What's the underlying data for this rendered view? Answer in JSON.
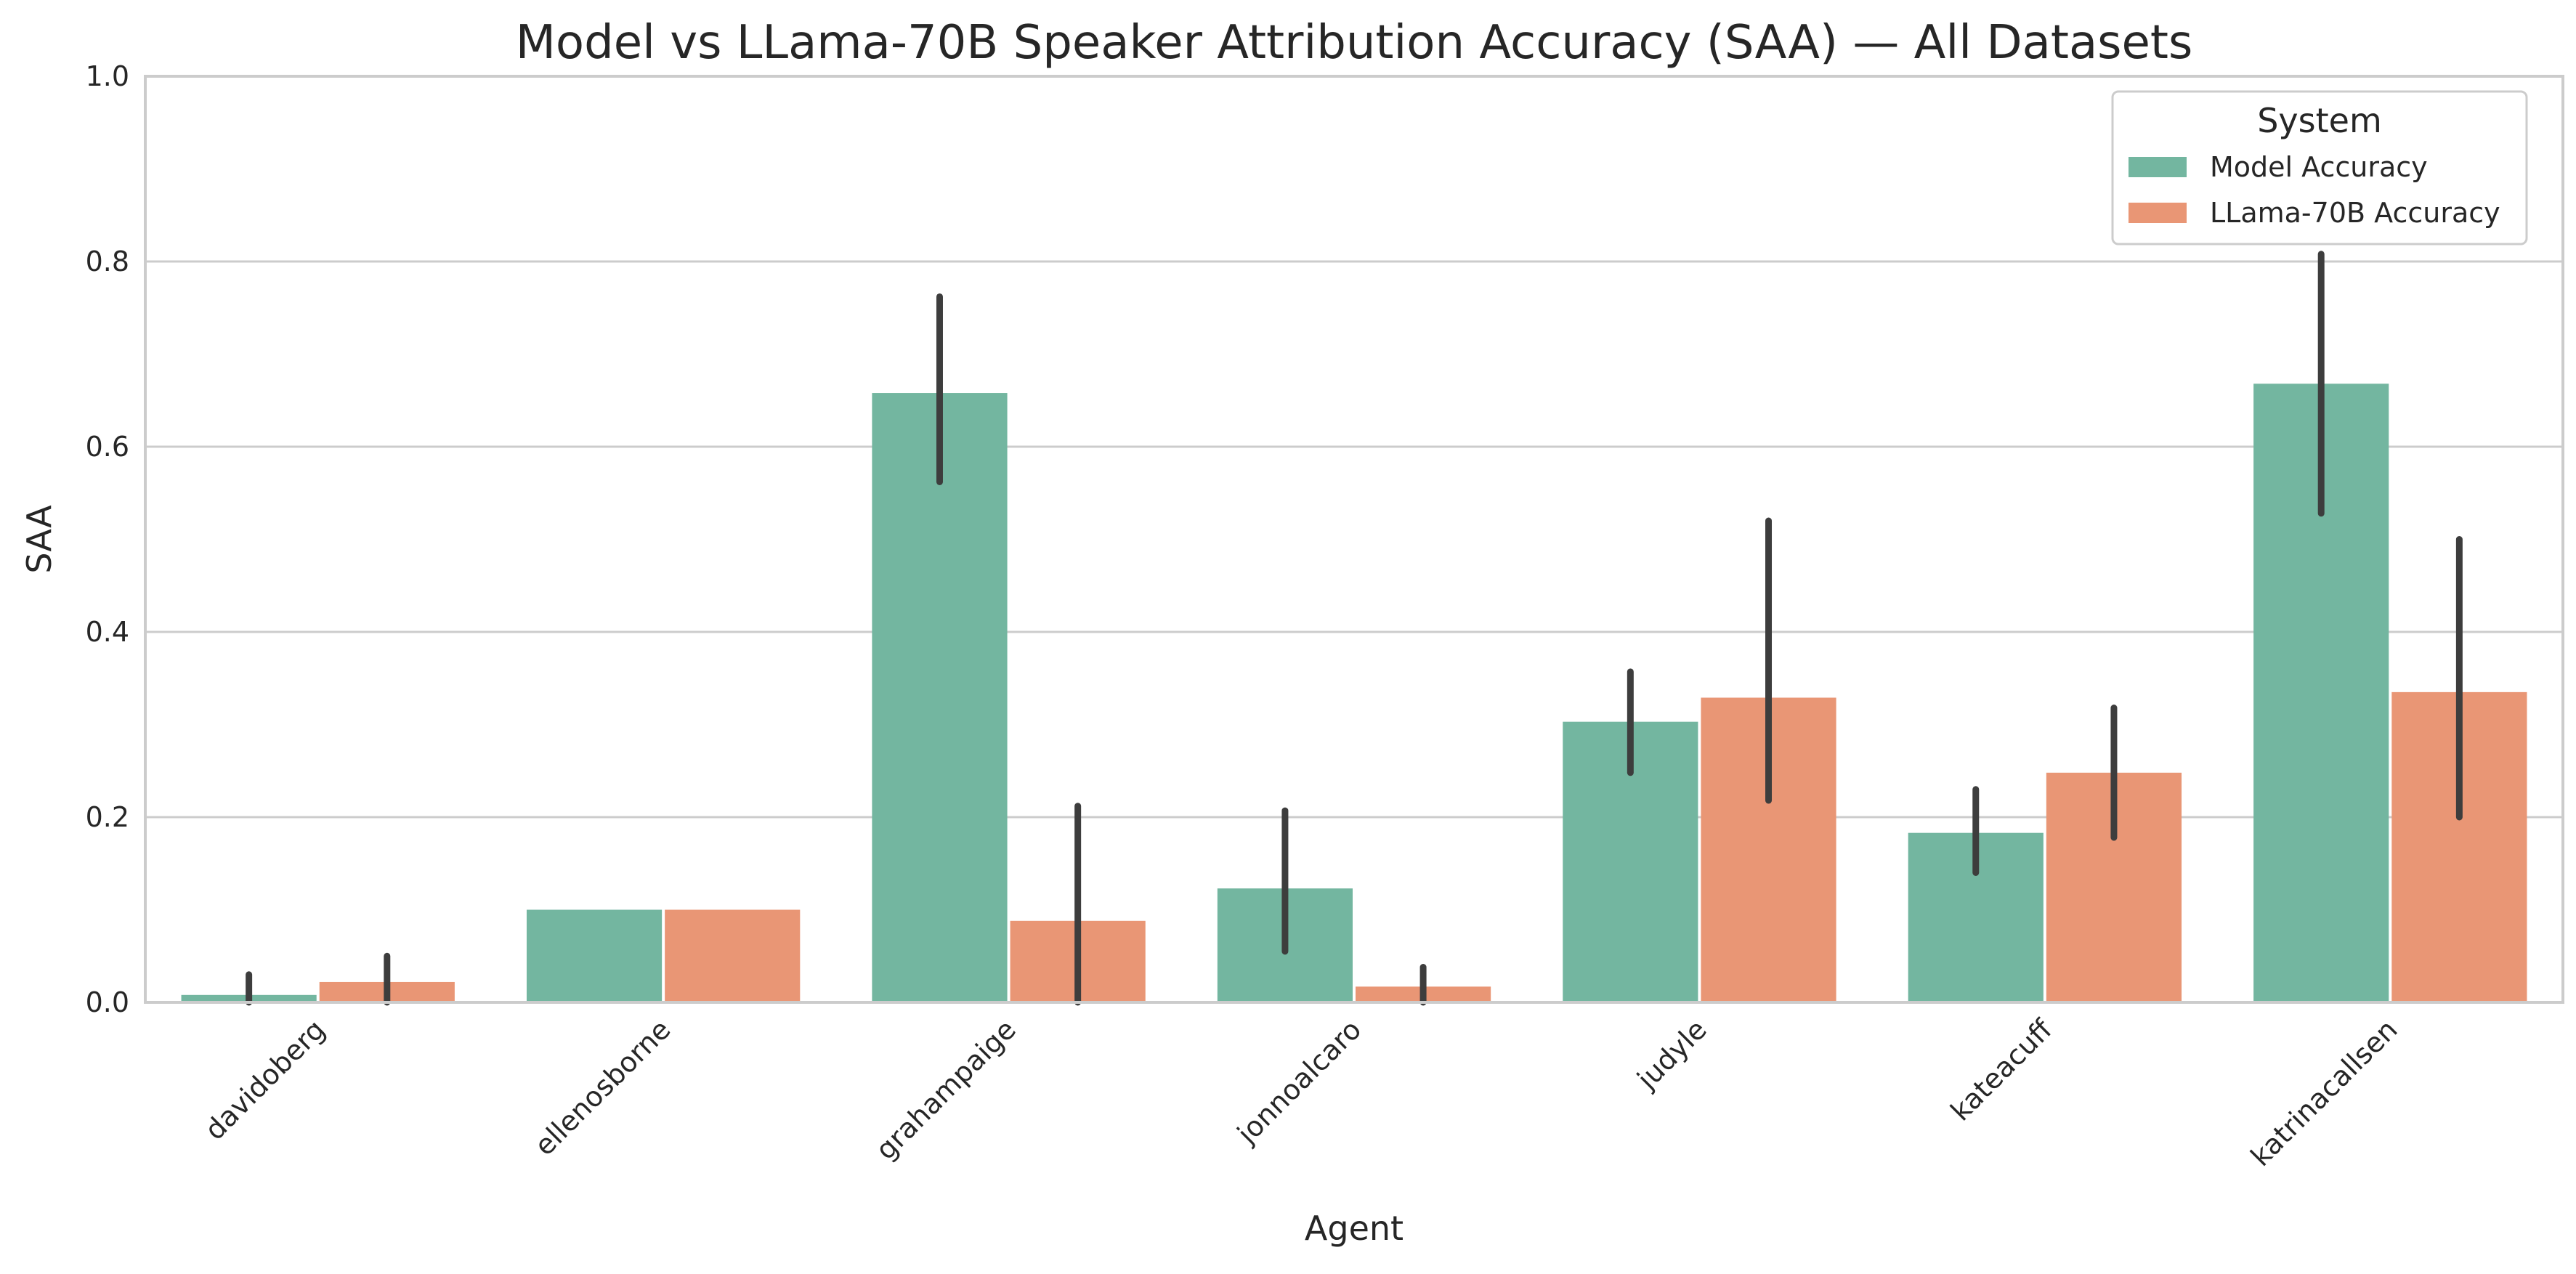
{
  "chart_data": {
    "type": "bar",
    "title": "Model vs LLama-70B Speaker Attribution Accuracy (SAA) — All Datasets",
    "xlabel": "Agent",
    "ylabel": "SAA",
    "ylim": [
      0,
      1.0
    ],
    "yticks": [
      "0.0",
      "0.2",
      "0.4",
      "0.6",
      "0.8",
      "1.0"
    ],
    "grid": "horizontal",
    "legend": {
      "title": "System",
      "position": "top-right"
    },
    "categories": [
      "davidoberg",
      "ellenosborne",
      "grahampaige",
      "jonnoalcaro",
      "judyle",
      "kateacuff",
      "katrinacallsen"
    ],
    "series": [
      {
        "name": "Model Accuracy",
        "color": "#73b6a0",
        "values": [
          0.008,
          0.1,
          0.658,
          0.123,
          0.303,
          0.183,
          0.668
        ],
        "error_low": [
          0.0,
          null,
          0.562,
          0.055,
          0.248,
          0.14,
          0.528
        ],
        "error_high": [
          0.03,
          null,
          0.762,
          0.207,
          0.357,
          0.23,
          0.808
        ]
      },
      {
        "name": "LLama-70B Accuracy",
        "color": "#e99675",
        "values": [
          0.022,
          0.1,
          0.088,
          0.017,
          0.329,
          0.248,
          0.335
        ],
        "error_low": [
          0.0,
          null,
          0.0,
          0.0,
          0.218,
          0.178,
          0.2
        ],
        "error_high": [
          0.05,
          null,
          0.212,
          0.038,
          0.52,
          0.318,
          0.5
        ]
      }
    ]
  }
}
